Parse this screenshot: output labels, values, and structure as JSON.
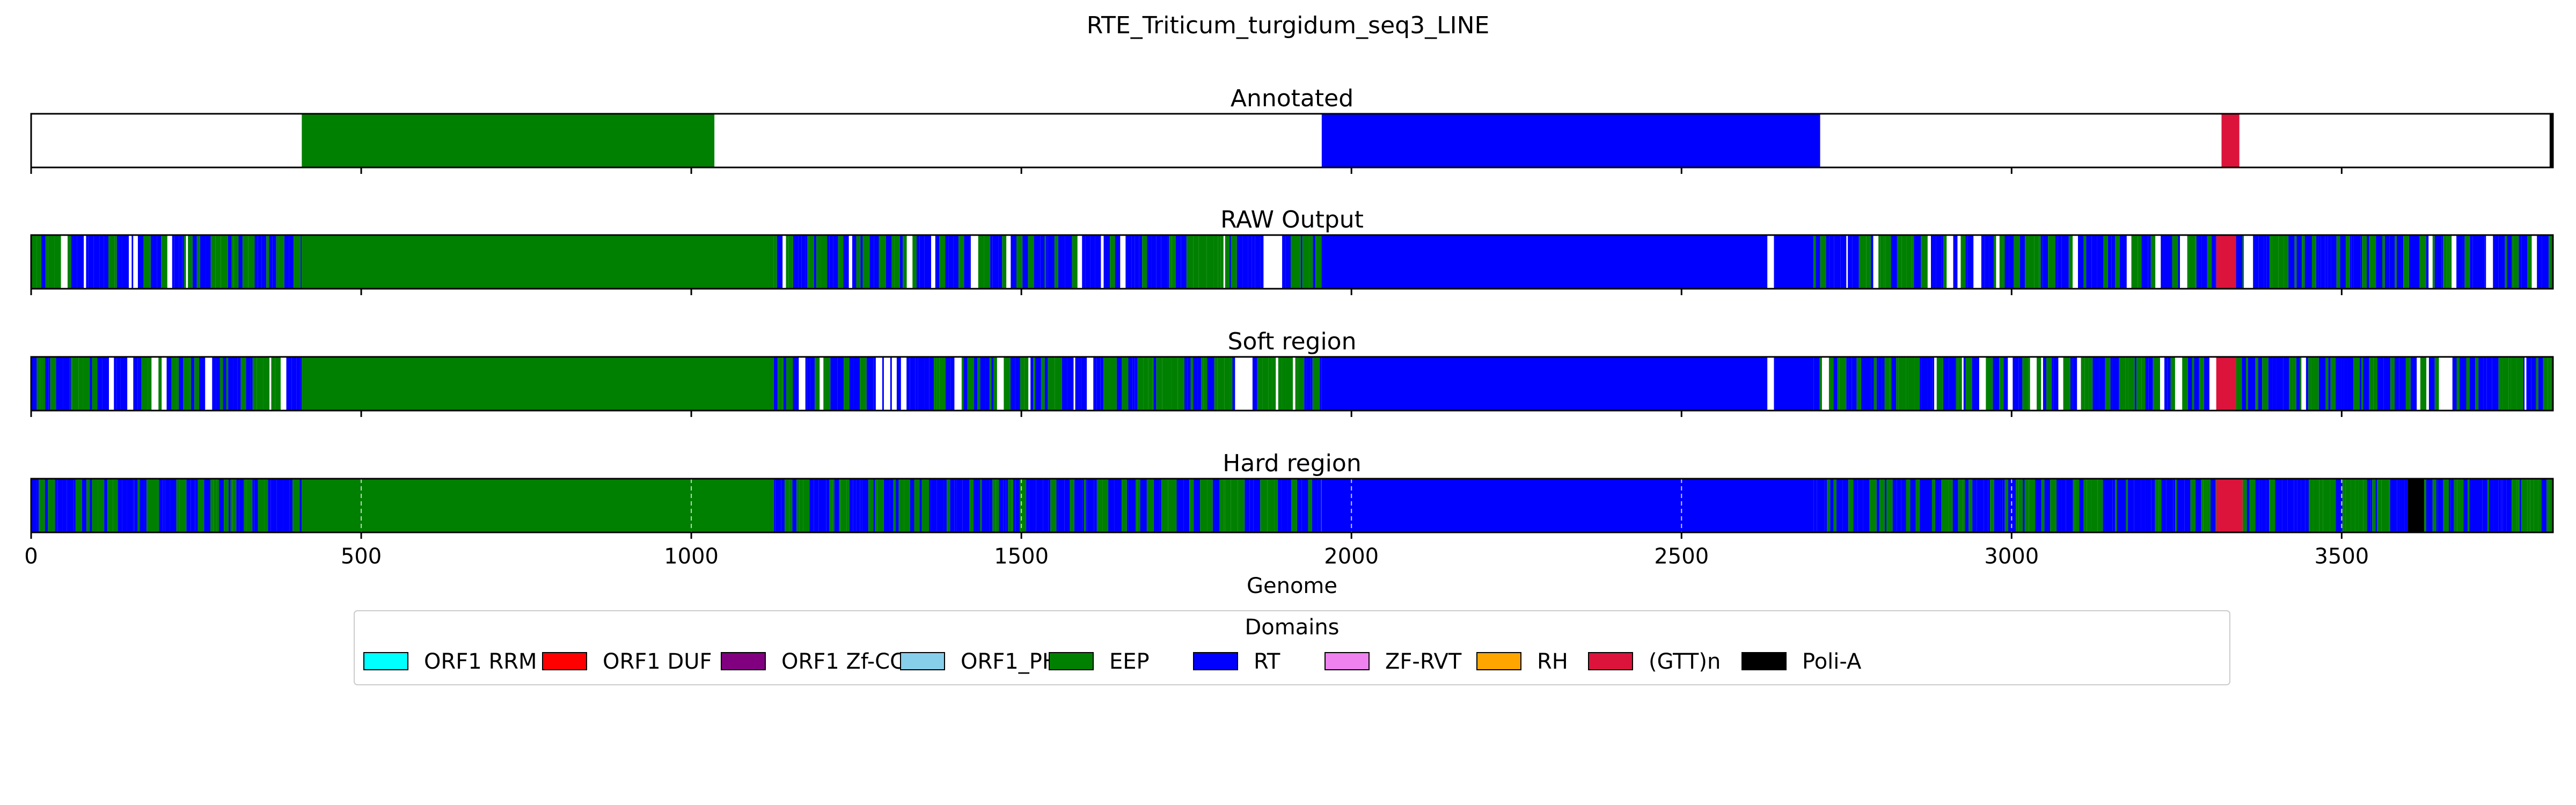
{
  "figure_title": "RTE_Triticum_turgidum_seq3_LINE",
  "chart_data": {
    "type": "genome-track",
    "x": {
      "label": "Genome",
      "range": [
        0,
        3820
      ],
      "ticks": [
        0,
        500,
        1000,
        1500,
        2000,
        2500,
        3000,
        3500
      ]
    },
    "colors": {
      "ORF1 RRM": "#00ffff",
      "ORF1 DUF": "#ff0000",
      "ORF1 Zf-CCHC": "#800080",
      "ORF1_PHA": "#87ceeb",
      "EEP": "#008000",
      "RT": "#0000ff",
      "ZF-RVT": "#ee82ee",
      "RH": "#ffa500",
      "(GTT)n": "#dc143c",
      "Poli-A": "#000000"
    },
    "legend": {
      "title": "Domains",
      "placement": "below",
      "entries": [
        "ORF1 RRM",
        "ORF1 DUF",
        "ORF1 Zf-CCHC",
        "ORF1_PHA",
        "EEP",
        "RT",
        "ZF-RVT",
        "RH",
        "(GTT)n",
        "Poli-A"
      ]
    },
    "panels": [
      {
        "title": "Annotated",
        "background": "none",
        "segments": [
          {
            "domain": "EEP",
            "start": 410,
            "end": 1035
          },
          {
            "domain": "RT",
            "start": 1955,
            "end": 2710
          },
          {
            "domain": "(GTT)n",
            "start": 3318,
            "end": 3345
          },
          {
            "domain": "Poli-A",
            "start": 3815,
            "end": 3820
          }
        ]
      },
      {
        "title": "RAW Output",
        "background": "none",
        "segments": [
          {
            "domain": "mixed-EEP-RT",
            "start": 0,
            "end": 410
          },
          {
            "domain": "EEP",
            "start": 410,
            "end": 1125
          },
          {
            "domain": "mixed-EEP-RT",
            "start": 1125,
            "end": 1955
          },
          {
            "domain": "RT",
            "start": 1955,
            "end": 2630
          },
          {
            "domain": "RT",
            "start": 2640,
            "end": 2700
          },
          {
            "domain": "mixed-EEP-RT",
            "start": 2700,
            "end": 3310
          },
          {
            "domain": "(GTT)n",
            "start": 3310,
            "end": 3340
          },
          {
            "domain": "mixed-EEP-RT",
            "start": 3340,
            "end": 3820
          }
        ]
      },
      {
        "title": "Soft region",
        "background": "none",
        "segments": [
          {
            "domain": "mixed-EEP-RT",
            "start": 0,
            "end": 410
          },
          {
            "domain": "EEP",
            "start": 410,
            "end": 1125
          },
          {
            "domain": "mixed-EEP-RT",
            "start": 1125,
            "end": 1955
          },
          {
            "domain": "RT",
            "start": 1955,
            "end": 2630
          },
          {
            "domain": "RT",
            "start": 2640,
            "end": 2700
          },
          {
            "domain": "mixed-EEP-RT",
            "start": 2700,
            "end": 3310
          },
          {
            "domain": "(GTT)n",
            "start": 3310,
            "end": 3340
          },
          {
            "domain": "mixed-EEP-RT",
            "start": 3340,
            "end": 3820
          }
        ]
      },
      {
        "title": "Hard region",
        "background": "none",
        "segments": [
          {
            "domain": "mixed-EEP-RT",
            "start": 0,
            "end": 410
          },
          {
            "domain": "EEP",
            "start": 410,
            "end": 1125
          },
          {
            "domain": "mixed-EEP-RT",
            "start": 1125,
            "end": 1955
          },
          {
            "domain": "RT",
            "start": 1955,
            "end": 2700
          },
          {
            "domain": "mixed-EEP-RT",
            "start": 2700,
            "end": 3310
          },
          {
            "domain": "(GTT)n",
            "start": 3310,
            "end": 3350
          },
          {
            "domain": "mixed-EEP-RT",
            "start": 3350,
            "end": 3600
          },
          {
            "domain": "Poli-A",
            "start": 3600,
            "end": 3625
          },
          {
            "domain": "mixed-EEP-RT",
            "start": 3625,
            "end": 3820
          }
        ]
      }
    ]
  }
}
